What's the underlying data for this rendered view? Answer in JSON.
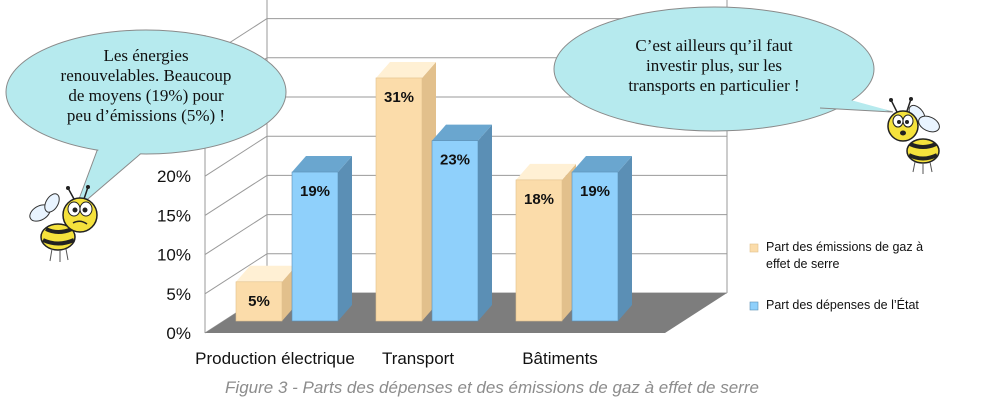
{
  "chart_data": {
    "type": "bar",
    "title": "",
    "xlabel": "",
    "ylabel": "",
    "ylim": [
      0,
      0.4
    ],
    "y_ticks": [
      "0%",
      "5%",
      "10%",
      "15%",
      "20%"
    ],
    "categories": [
      "Production électrique",
      "Transport",
      "Bâtiments"
    ],
    "series": [
      {
        "name": "Part des émissions de gaz à effet de serre",
        "values": [
          0.05,
          0.31,
          0.18
        ],
        "labels": [
          "5%",
          "31%",
          "18%"
        ],
        "color": "#fbdcaa",
        "side_color": "#e2c08c",
        "top_color": "#fff0d4"
      },
      {
        "name": "Part des dépenses de l’État",
        "values": [
          0.19,
          0.23,
          0.19
        ],
        "labels": [
          "19%",
          "23%",
          "19%"
        ],
        "color": "#8fd0fb",
        "side_color": "#5b8fb5",
        "top_color": "#6aa6cf"
      }
    ],
    "legend_position": "right",
    "grid": true
  },
  "legend": {
    "emissions_line1": "Part des émissions de gaz à",
    "emissions_line2": "effet de serre",
    "spending": "Part des dépenses de l’État"
  },
  "bubbles": {
    "left": [
      "Les énergies",
      "renouvelables. Beaucoup",
      "de moyens (19%) pour",
      "peu d’émissions (5%) !"
    ],
    "right": [
      "C’est ailleurs qu’il faut",
      "investir plus, sur les",
      "transports en particulier !"
    ]
  },
  "caption": "Figure 3 - Parts des dépenses et des émissions de gaz à effet de serre",
  "colors": {
    "bubble_fill": "#b6eaee",
    "grid": "#9a9a9a",
    "floor": "#7d7d7d",
    "bee_yellow": "#f5e23c"
  }
}
